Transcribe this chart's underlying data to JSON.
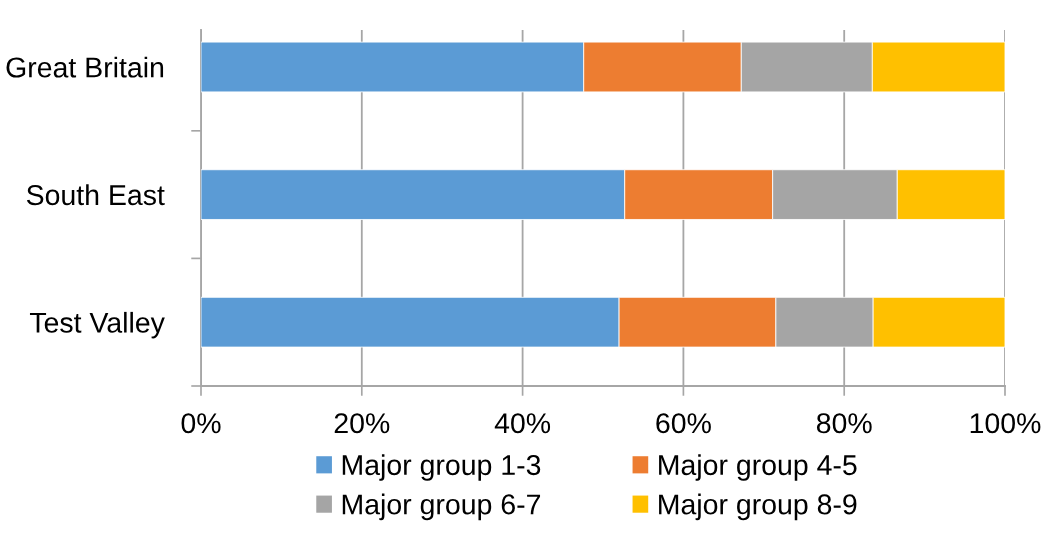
{
  "chart_data": {
    "type": "bar",
    "orientation": "horizontal",
    "stacked": true,
    "categories": [
      "Great Britain",
      "South East",
      "Test Valley"
    ],
    "series": [
      {
        "name": "Major group 1-3",
        "color": "#5b9bd5",
        "values": [
          47.6,
          52.7,
          52.0
        ]
      },
      {
        "name": "Major group 4-5",
        "color": "#ed7d31",
        "values": [
          19.6,
          18.4,
          19.5
        ]
      },
      {
        "name": "Major group 6-7",
        "color": "#a5a5a5",
        "values": [
          16.3,
          15.5,
          12.1
        ]
      },
      {
        "name": "Major group 8-9",
        "color": "#ffc000",
        "values": [
          16.5,
          13.4,
          16.4
        ]
      }
    ],
    "xlim": [
      0,
      100
    ],
    "xticks": [
      {
        "value": 0,
        "label": "0%"
      },
      {
        "value": 20,
        "label": "20%"
      },
      {
        "value": 40,
        "label": "40%"
      },
      {
        "value": 60,
        "label": "60%"
      },
      {
        "value": 80,
        "label": "80%"
      },
      {
        "value": 100,
        "label": "100%"
      }
    ],
    "grid": "x",
    "legend": "bottom"
  }
}
